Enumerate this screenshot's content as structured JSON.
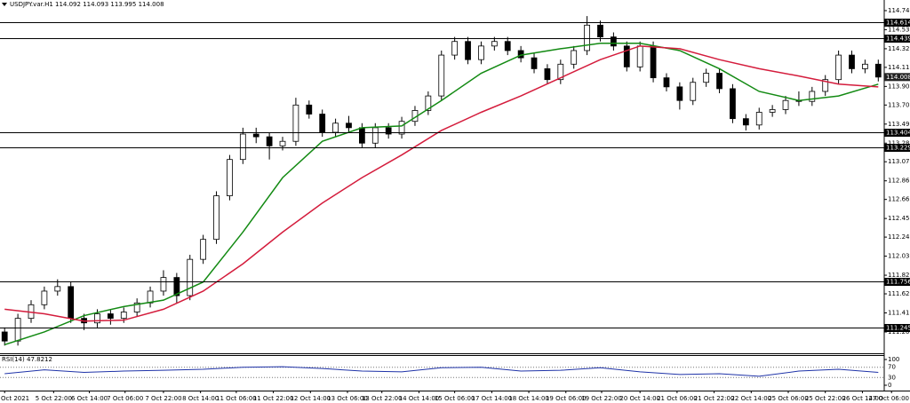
{
  "header": {
    "symbol": "USDJPY.var.H1",
    "ohlc": [
      114.092,
      114.093,
      113.995,
      114.008
    ]
  },
  "chart_data": {
    "type": "candlestick",
    "up_color": "#ffffff",
    "down_color": "#000000",
    "wick_color": "#000000",
    "open": [
      111.2,
      111.1,
      111.35,
      111.5,
      111.65,
      111.7,
      111.35,
      111.3,
      111.4,
      111.35,
      111.42,
      111.52,
      111.65,
      111.8,
      111.6,
      112.0,
      112.22,
      112.7,
      113.1,
      113.38,
      113.35,
      113.25,
      113.3,
      113.7,
      113.6,
      113.4,
      113.5,
      113.45,
      113.28,
      113.45,
      113.38,
      113.52,
      113.64,
      113.8,
      114.25,
      114.4,
      114.2,
      114.35,
      114.4,
      114.3,
      114.22,
      114.1,
      113.98,
      114.15,
      114.3,
      114.58,
      114.45,
      114.35,
      114.12,
      114.35,
      114.0,
      113.9,
      113.75,
      113.95,
      114.05,
      113.88,
      113.55,
      113.48,
      113.62,
      113.65,
      113.75,
      113.74,
      113.85,
      113.98,
      114.25,
      114.1,
      114.15
    ],
    "high": [
      111.25,
      111.4,
      111.55,
      111.7,
      111.78,
      111.75,
      111.4,
      111.45,
      111.45,
      111.47,
      111.57,
      111.7,
      111.88,
      111.85,
      112.05,
      112.27,
      112.75,
      113.15,
      113.45,
      113.45,
      113.4,
      113.35,
      113.78,
      113.75,
      113.65,
      113.55,
      113.58,
      113.5,
      113.5,
      113.5,
      113.57,
      113.69,
      113.85,
      114.3,
      114.45,
      114.45,
      114.4,
      114.45,
      114.45,
      114.35,
      114.27,
      114.15,
      114.2,
      114.35,
      114.68,
      114.63,
      114.5,
      114.4,
      114.4,
      114.4,
      114.05,
      113.95,
      114.0,
      114.1,
      114.1,
      113.93,
      113.6,
      113.67,
      113.7,
      113.8,
      113.85,
      113.9,
      114.03,
      114.3,
      114.3,
      114.2,
      114.2
    ],
    "low": [
      111.05,
      111.05,
      111.3,
      111.45,
      111.6,
      111.3,
      111.22,
      111.25,
      111.28,
      111.3,
      111.37,
      111.47,
      111.6,
      111.52,
      111.55,
      111.95,
      112.17,
      112.65,
      113.05,
      113.28,
      113.1,
      113.2,
      113.25,
      113.55,
      113.35,
      113.35,
      113.4,
      113.23,
      113.23,
      113.33,
      113.33,
      113.47,
      113.59,
      113.75,
      114.2,
      114.15,
      114.15,
      114.3,
      114.25,
      114.17,
      114.05,
      113.93,
      113.93,
      114.1,
      114.25,
      114.4,
      114.3,
      114.07,
      114.07,
      113.95,
      113.85,
      113.65,
      113.7,
      113.9,
      113.83,
      113.5,
      113.42,
      113.43,
      113.57,
      113.6,
      113.69,
      113.69,
      113.8,
      113.93,
      114.05,
      114.05,
      113.96
    ],
    "close": [
      111.1,
      111.35,
      111.5,
      111.65,
      111.7,
      111.35,
      111.3,
      111.4,
      111.35,
      111.42,
      111.52,
      111.65,
      111.8,
      111.6,
      112.0,
      112.22,
      112.7,
      113.1,
      113.38,
      113.35,
      113.25,
      113.3,
      113.7,
      113.6,
      113.4,
      113.5,
      113.45,
      113.28,
      113.45,
      113.38,
      113.52,
      113.64,
      113.8,
      114.25,
      114.4,
      114.2,
      114.35,
      114.4,
      114.3,
      114.22,
      114.1,
      113.98,
      114.15,
      114.3,
      114.58,
      114.45,
      114.35,
      114.12,
      114.35,
      114.0,
      113.9,
      113.75,
      113.95,
      114.05,
      113.88,
      113.55,
      113.48,
      113.62,
      113.65,
      113.75,
      113.74,
      113.85,
      113.98,
      114.25,
      114.1,
      114.15,
      114.008
    ],
    "moving_averages": [
      {
        "color": "#138a13",
        "x": [
          0,
          3,
          6,
          9,
          12,
          15,
          18,
          21,
          24,
          27,
          30,
          33,
          36,
          39,
          42,
          45,
          48,
          51,
          54,
          57,
          60,
          63,
          66
        ],
        "values": [
          111.06,
          111.2,
          111.38,
          111.48,
          111.55,
          111.75,
          112.3,
          112.9,
          113.3,
          113.45,
          113.47,
          113.75,
          114.05,
          114.25,
          114.32,
          114.38,
          114.38,
          114.3,
          114.1,
          113.85,
          113.75,
          113.8,
          113.93
        ]
      },
      {
        "color": "#d41c3c",
        "x": [
          0,
          3,
          6,
          9,
          12,
          15,
          18,
          21,
          24,
          27,
          30,
          33,
          36,
          39,
          42,
          45,
          48,
          51,
          54,
          57,
          60,
          63,
          66
        ],
        "values": [
          111.45,
          111.4,
          111.32,
          111.33,
          111.45,
          111.65,
          111.95,
          112.3,
          112.62,
          112.9,
          113.15,
          113.42,
          113.62,
          113.8,
          114.0,
          114.2,
          114.35,
          114.32,
          114.2,
          114.1,
          114.02,
          113.93,
          113.9
        ]
      }
    ],
    "levels": [
      114.614,
      114.439,
      113.404,
      113.229,
      111.756,
      111.245
    ],
    "last_price": 114.008,
    "ylim": [
      110.965,
      114.857
    ],
    "yticks": [
      {
        "value": 114.74,
        "label": "114.740"
      },
      {
        "value": 114.53,
        "label": "114.530"
      },
      {
        "value": 114.32,
        "label": "114.320"
      },
      114.115,
      113.905,
      {
        "value": 113.7,
        "label": "113.700"
      },
      {
        "value": 113.49,
        "label": "113.490"
      },
      {
        "value": 113.28,
        "label": "113.280"
      },
      113.075,
      112.865,
      {
        "value": 112.66,
        "label": "112.660"
      },
      {
        "value": 112.45,
        "label": "112.450"
      },
      112.245,
      112.035,
      111.825,
      {
        "value": 111.62,
        "label": "111.620"
      },
      {
        "value": 111.41,
        "label": "111.410"
      },
      {
        "value": 111.2,
        "label": "111.200"
      }
    ],
    "xlim": [
      -0.35,
      66.45
    ],
    "xticks": [
      {
        "value": 0,
        "label": "Oct 2021"
      },
      {
        "value": 3.7,
        "label": "5 Oct 22:00"
      },
      {
        "value": 6.4,
        "label": "6 Oct 14:00"
      },
      {
        "value": 9.1,
        "label": "7 Oct 06:00"
      },
      {
        "value": 12,
        "label": "7 Oct 22:00"
      },
      {
        "value": 14.8,
        "label": "8 Oct 14:00"
      },
      {
        "value": 17.5,
        "label": "11 Oct 06:00"
      },
      {
        "value": 20.3,
        "label": "11 Oct 22:00"
      },
      {
        "value": 23.1,
        "label": "12 Oct 14:00"
      },
      {
        "value": 25.9,
        "label": "13 Oct 06:00"
      },
      {
        "value": 28.5,
        "label": "13 Oct 22:00"
      },
      {
        "value": 31.3,
        "label": "14 Oct 14:00"
      },
      {
        "value": 34,
        "label": "15 Oct 06:00"
      },
      {
        "value": 36.8,
        "label": "17 Oct 14:00"
      },
      {
        "value": 39.6,
        "label": "18 Oct 14:00"
      },
      {
        "value": 42.4,
        "label": "19 Oct 06:00"
      },
      {
        "value": 45.1,
        "label": "19 Oct 22:00"
      },
      {
        "value": 48,
        "label": "20 Oct 14:00"
      },
      {
        "value": 50.8,
        "label": "21 Oct 06:00"
      },
      {
        "value": 53.6,
        "label": "21 Oct 22:00"
      },
      {
        "value": 56.4,
        "label": "22 Oct 14:00"
      },
      {
        "value": 59.2,
        "label": "25 Oct 06:00"
      },
      {
        "value": 62,
        "label": "25 Oct 22:00"
      },
      {
        "value": 64.8,
        "label": "26 Oct 14:00"
      },
      {
        "value": 67,
        "label": "27 Oct 06:00"
      }
    ],
    "rsi": {
      "name": "RSI(14)",
      "last": 47.8212,
      "color": "#1f33a8",
      "x": [
        0,
        3,
        6,
        9,
        12,
        15,
        18,
        21,
        24,
        27,
        30,
        33,
        36,
        39,
        42,
        45,
        48,
        51,
        54,
        57,
        60,
        63,
        66
      ],
      "values": [
        45,
        60,
        50,
        55,
        58,
        62,
        70,
        72,
        65,
        55,
        52,
        68,
        70,
        55,
        58,
        68,
        52,
        42,
        45,
        35,
        55,
        62,
        50
      ],
      "ylim": [
        0,
        100
      ],
      "yticks": [
        100,
        70,
        30,
        0
      ]
    }
  }
}
